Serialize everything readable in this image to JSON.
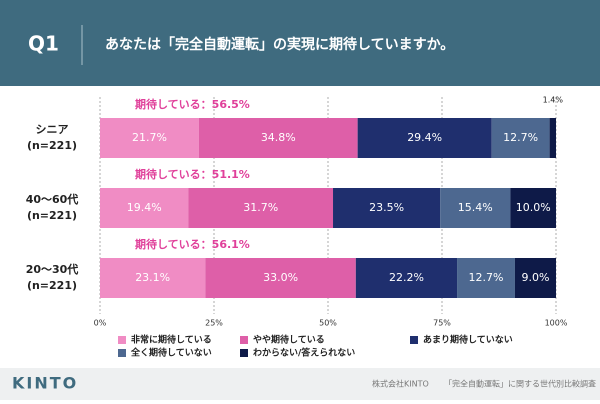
{
  "header": {
    "question": "Q1",
    "title": "あなたは「完全自動運転」の実現に期待していますか。"
  },
  "chart_data": {
    "type": "stacked-bar-horizontal",
    "categories": [
      "シニア",
      "40～60代",
      "20～30代"
    ],
    "sample_sizes": [
      "(n=221)",
      "(n=221)",
      "(n=221)"
    ],
    "annotations": [
      "期待している：56.5%",
      "期待している：51.1%",
      "期待している：56.1%"
    ],
    "series": [
      {
        "name": "非常に期待している",
        "color": "#f08cc4",
        "values": [
          21.7,
          19.4,
          23.1
        ],
        "value_labels": [
          "21.7%",
          "19.4%",
          "23.1%"
        ]
      },
      {
        "name": "やや期待している",
        "color": "#de5fa8",
        "values": [
          34.8,
          31.7,
          33.0
        ],
        "value_labels": [
          "34.8%",
          "31.7%",
          "33.0%"
        ]
      },
      {
        "name": "あまり期待していない",
        "color": "#1f2f6e",
        "values": [
          29.4,
          23.5,
          22.2
        ],
        "value_labels": [
          "29.4%",
          "23.5%",
          "22.2%"
        ]
      },
      {
        "name": "全く期待していない",
        "color": "#4d6890",
        "values": [
          12.7,
          15.4,
          12.7
        ],
        "value_labels": [
          "12.7%",
          "15.4%",
          "12.7%"
        ]
      },
      {
        "name": "わからない/答えられない",
        "color": "#0e1a48",
        "values": [
          1.4,
          10.0,
          9.0
        ],
        "value_labels": [
          "1.4%",
          "10.0%",
          "9.0%"
        ]
      }
    ],
    "xlim": [
      0,
      100
    ],
    "xticks": [
      {
        "value": 0,
        "label": "0%"
      },
      {
        "value": 25,
        "label": "25%"
      },
      {
        "value": 50,
        "label": "50%"
      },
      {
        "value": 75,
        "label": "75%"
      },
      {
        "value": 100,
        "label": "100%"
      }
    ],
    "grid": true
  },
  "footer": {
    "company": "株式会社KINTO",
    "survey": "「完全自動運転」に関する世代別比較調査",
    "logo": "KINTO"
  }
}
